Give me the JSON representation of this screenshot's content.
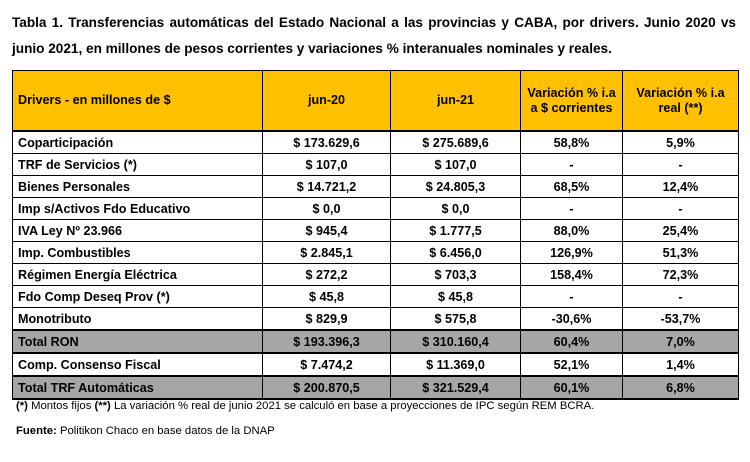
{
  "title": "Tabla 1. Transferencias automáticas del Estado Nacional a las provincias y CABA, por drivers. Junio 2020 vs junio 2021, en millones de pesos corrientes y variaciones % interanuales nominales y reales.",
  "table": {
    "header": [
      "Drivers - en millones de $",
      "jun-20",
      "jun-21",
      "Variación % i.a a $ corrientes",
      "Variación % i.a real (**)"
    ],
    "rows": [
      [
        "Coparticipación",
        "$ 173.629,6",
        "$ 275.689,6",
        "58,8%",
        "5,9%"
      ],
      [
        "TRF de Servicios (*)",
        "$ 107,0",
        "$ 107,0",
        "-",
        "-"
      ],
      [
        "Bienes Personales",
        "$ 14.721,2",
        "$ 24.805,3",
        "68,5%",
        "12,4%"
      ],
      [
        "Imp s/Activos Fdo Educativo",
        "$ 0,0",
        "$ 0,0",
        "-",
        "-"
      ],
      [
        "IVA Ley Nº 23.966",
        "$ 945,4",
        "$ 1.777,5",
        "88,0%",
        "25,4%"
      ],
      [
        "Imp. Combustibles",
        "$ 2.845,1",
        "$ 6.456,0",
        "126,9%",
        "51,3%"
      ],
      [
        "Régimen Energía Eléctrica",
        "$ 272,2",
        "$ 703,3",
        "158,4%",
        "72,3%"
      ],
      [
        "Fdo Comp Deseq Prov (*)",
        "$ 45,8",
        "$ 45,8",
        "-",
        "-"
      ],
      [
        "Monotributo",
        "$ 829,9",
        "$ 575,8",
        "-30,6%",
        "-53,7%"
      ],
      [
        "Total RON",
        "$ 193.396,3",
        "$ 310.160,4",
        "60,4%",
        "7,0%"
      ],
      [
        "Comp. Consenso Fiscal",
        "$ 7.474,2",
        "$ 11.369,0",
        "52,1%",
        "1,4%"
      ],
      [
        "Total TRF Automáticas",
        "$ 200.870,5",
        "$ 321.529,4",
        "60,1%",
        "6,8%"
      ]
    ]
  },
  "footnote": [
    "(*)",
    "Montos fijos",
    "(**)",
    "La variación % real de junio 2021 se calculó en base a proyecciones de IPC según REM BCRA."
  ],
  "source": {
    "label": "Fuente:",
    "text": "Politikon Chaco en base datos de la DNAP"
  }
}
